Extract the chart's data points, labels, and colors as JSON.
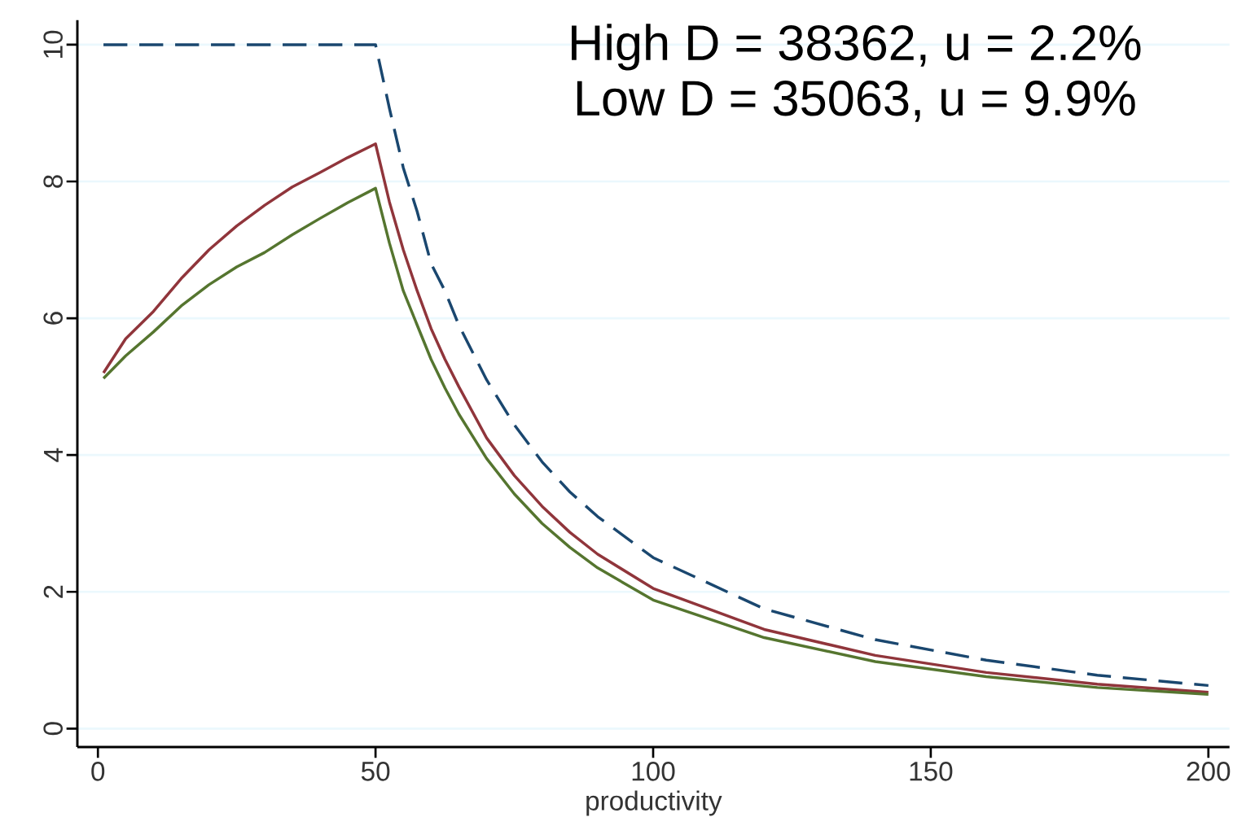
{
  "chart_data": {
    "type": "line",
    "xlabel": "productivity",
    "annotations": [
      "High D = 38362, u = 2.2%",
      "Low D = 35063, u = 9.9%"
    ],
    "xlim": [
      -3.7,
      203.8
    ],
    "ylim": [
      -0.27,
      10.36
    ],
    "xticks": [
      0,
      50,
      100,
      150,
      200
    ],
    "yticks": [
      0,
      2,
      4,
      6,
      8,
      10
    ],
    "grid": "y",
    "marker": "none",
    "x": [
      1,
      5,
      10,
      15,
      20,
      25,
      30,
      35,
      40,
      45,
      50,
      52.5,
      55,
      57.5,
      60,
      62.5,
      65,
      70,
      75,
      80,
      85,
      90,
      100,
      120,
      140,
      160,
      180,
      200
    ],
    "series": [
      {
        "color": "#1a476f",
        "line_style": "dashed",
        "values": [
          10,
          10,
          10,
          10,
          10,
          10,
          10,
          10,
          10,
          10,
          10,
          9.07,
          8.2,
          7.56,
          6.8,
          6.4,
          5.9,
          5.1,
          4.44,
          3.9,
          3.46,
          3.1,
          2.5,
          1.75,
          1.3,
          1.0,
          0.78,
          0.63
        ]
      },
      {
        "color": "#90353b",
        "line_style": "solid",
        "values": [
          5.2,
          5.7,
          6.1,
          6.58,
          7.0,
          7.35,
          7.65,
          7.92,
          8.13,
          8.35,
          8.55,
          7.7,
          7.0,
          6.4,
          5.85,
          5.4,
          5.0,
          4.25,
          3.7,
          3.25,
          2.87,
          2.55,
          2.05,
          1.45,
          1.07,
          0.82,
          0.65,
          0.53
        ]
      },
      {
        "color": "#55752f",
        "line_style": "solid",
        "values": [
          5.12,
          5.45,
          5.8,
          6.18,
          6.49,
          6.75,
          6.96,
          7.22,
          7.46,
          7.69,
          7.9,
          7.1,
          6.4,
          5.9,
          5.4,
          4.98,
          4.6,
          3.95,
          3.43,
          3.0,
          2.65,
          2.35,
          1.88,
          1.33,
          0.98,
          0.76,
          0.6,
          0.5
        ]
      }
    ]
  }
}
